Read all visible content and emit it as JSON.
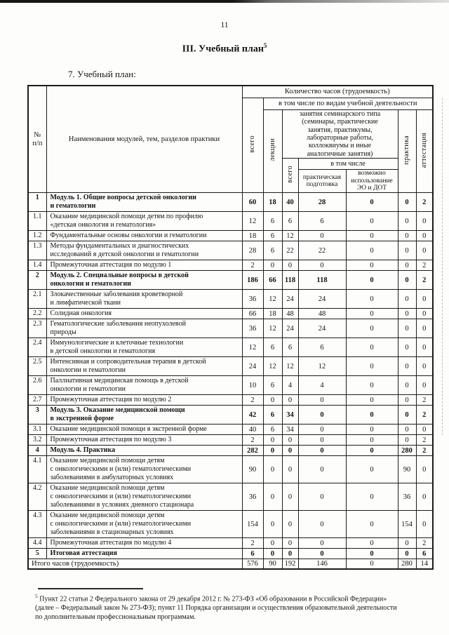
{
  "page": {
    "number": "11",
    "title": "III. Учебный план",
    "title_sup": "5",
    "subtitle": "7. Учебный план:"
  },
  "table": {
    "header": {
      "col_num": "№\nп/п",
      "col_name": "Наименования модулей, тем, разделов практики",
      "hours": "Количество часов (трудоемкость)",
      "including": "в том числе по видам учебной деятельности",
      "total": "всего",
      "lectures": "лекции",
      "seminar_group": "занятия семинарского типа\n(семинары, практические\nзанятия, практикумы,\nлабораторные работы,\nколлоквиумы и иные\nаналогичные занятия)",
      "seminar_total": "всего",
      "seminar_including": "в том числе",
      "practical_training": "практическая\nподготовка",
      "eo_dot": "возможно\nиспользование\nЭО и ДОТ",
      "practice": "практика",
      "attestation": "аттестация"
    },
    "rows": [
      {
        "num": "1",
        "bold": true,
        "name": "Модуль 1. Общие вопросы детской онкологии\nи гематологии",
        "values": [
          "60",
          "18",
          "40",
          "28",
          "0",
          "0",
          "2"
        ]
      },
      {
        "num": "1.1",
        "bold": false,
        "name": "Оказание медицинской помощи детям по профилю\n«детская онкология и гематология»",
        "values": [
          "12",
          "6",
          "6",
          "6",
          "0",
          "0",
          "0"
        ]
      },
      {
        "num": "1.2",
        "bold": false,
        "name": "Фундаментальные основы онкологии и гематологии",
        "values": [
          "18",
          "6",
          "12",
          "0",
          "0",
          "0",
          "0"
        ]
      },
      {
        "num": "1.3",
        "bold": false,
        "name": "Методы фундаментальных и диагностических\nисследований в детской онкологии и гематологии",
        "values": [
          "28",
          "6",
          "22",
          "22",
          "0",
          "0",
          "0"
        ]
      },
      {
        "num": "1.4",
        "bold": false,
        "name": "Промежуточная аттестация по модулю 1",
        "values": [
          "2",
          "0",
          "0",
          "0",
          "0",
          "0",
          "2"
        ]
      },
      {
        "num": "2",
        "bold": true,
        "name": "Модуль 2. Специальные вопросы в детской\nонкологии и гематологии",
        "values": [
          "186",
          "66",
          "118",
          "118",
          "0",
          "0",
          "2"
        ]
      },
      {
        "num": "2.1",
        "bold": false,
        "name": "Злокачественные заболевания кроветворной\nи лимфатической ткани",
        "values": [
          "36",
          "12",
          "24",
          "24",
          "0",
          "0",
          "0"
        ]
      },
      {
        "num": "2.2",
        "bold": false,
        "name": "Солидная онкология",
        "values": [
          "66",
          "18",
          "48",
          "48",
          "0",
          "0",
          "0"
        ]
      },
      {
        "num": "2.3",
        "bold": false,
        "name": "Гематологические заболевания неопухолевой\nприроды",
        "values": [
          "36",
          "12",
          "24",
          "24",
          "0",
          "0",
          "0"
        ]
      },
      {
        "num": "2.4",
        "bold": false,
        "name": "Иммунологические и клеточные технологии\nв детской онкологии и гематология",
        "values": [
          "12",
          "6",
          "6",
          "6",
          "0",
          "0",
          "0"
        ]
      },
      {
        "num": "2.5",
        "bold": false,
        "name": "Интенсивная и сопроводительная терапия в детской\nонкологии и гематологии",
        "values": [
          "24",
          "12",
          "12",
          "12",
          "0",
          "0",
          "0"
        ]
      },
      {
        "num": "2.6",
        "bold": false,
        "name": "Паллиативная медицинская помощь в детской\nонкологии и гематологии",
        "values": [
          "10",
          "6",
          "4",
          "4",
          "0",
          "0",
          "0"
        ]
      },
      {
        "num": "2.7",
        "bold": false,
        "name": "Промежуточная аттестация по модулю 2",
        "values": [
          "2",
          "0",
          "0",
          "0",
          "0",
          "0",
          "2"
        ]
      },
      {
        "num": "3",
        "bold": true,
        "name": "Модуль 3. Оказание медицинской помощи\nв экстренной форме",
        "values": [
          "42",
          "6",
          "34",
          "0",
          "0",
          "0",
          "2"
        ]
      },
      {
        "num": "3.1",
        "bold": false,
        "name": "Оказание медицинской помощи в экстренной форме",
        "values": [
          "40",
          "6",
          "34",
          "0",
          "0",
          "0",
          "0"
        ]
      },
      {
        "num": "3.2",
        "bold": false,
        "name": "Промежуточная аттестация по модулю 3",
        "values": [
          "2",
          "0",
          "0",
          "0",
          "0",
          "0",
          "2"
        ]
      },
      {
        "num": "4",
        "bold": true,
        "name": "Модуль 4. Практика",
        "values": [
          "282",
          "0",
          "0",
          "0",
          "0",
          "280",
          "2"
        ]
      },
      {
        "num": "4.1",
        "bold": false,
        "name": "Оказание медицинской помощи детям\nс онкологическими и (или) гематологическими\nзаболеваниями в амбулаторных условиях",
        "values": [
          "90",
          "0",
          "0",
          "0",
          "0",
          "90",
          "0"
        ]
      },
      {
        "num": "4.2",
        "bold": false,
        "name": "Оказание медицинской помощи детям\nс онкологическими и (или) гематологическими\nзаболеваниями в условиях дневного стационара",
        "values": [
          "36",
          "0",
          "0",
          "0",
          "0",
          "36",
          "0"
        ]
      },
      {
        "num": "4.3",
        "bold": false,
        "name": "Оказание медицинской помощи детям\nс онкологическими и (или) гематологическими\nзаболеваниями в стационарных условиях",
        "values": [
          "154",
          "0",
          "0",
          "0",
          "0",
          "154",
          "0"
        ]
      },
      {
        "num": "4.4",
        "bold": false,
        "name": "Промежуточная аттестация по модулю 4",
        "values": [
          "2",
          "0",
          "0",
          "0",
          "0",
          "0",
          "2"
        ]
      },
      {
        "num": "5",
        "bold": true,
        "name": "Итоговая аттестация",
        "values": [
          "6",
          "0",
          "0",
          "0",
          "0",
          "0",
          "6"
        ]
      }
    ],
    "total_row": {
      "label": "Итого часов (трудоемкость)",
      "values": [
        "576",
        "90",
        "192",
        "146",
        "0",
        "280",
        "14"
      ]
    }
  },
  "footnote": {
    "ref": "5",
    "text": "Пункт 22 статьи 2 Федерального закона от 29 декабря 2012 г. № 273-ФЗ «Об образовании в Российской Федерации»\n(далее – Федеральный закон № 273-ФЗ); пункт 11 Порядка организации и осуществления образовательной деятельности\nпо дополнительным профессиональным программам."
  }
}
